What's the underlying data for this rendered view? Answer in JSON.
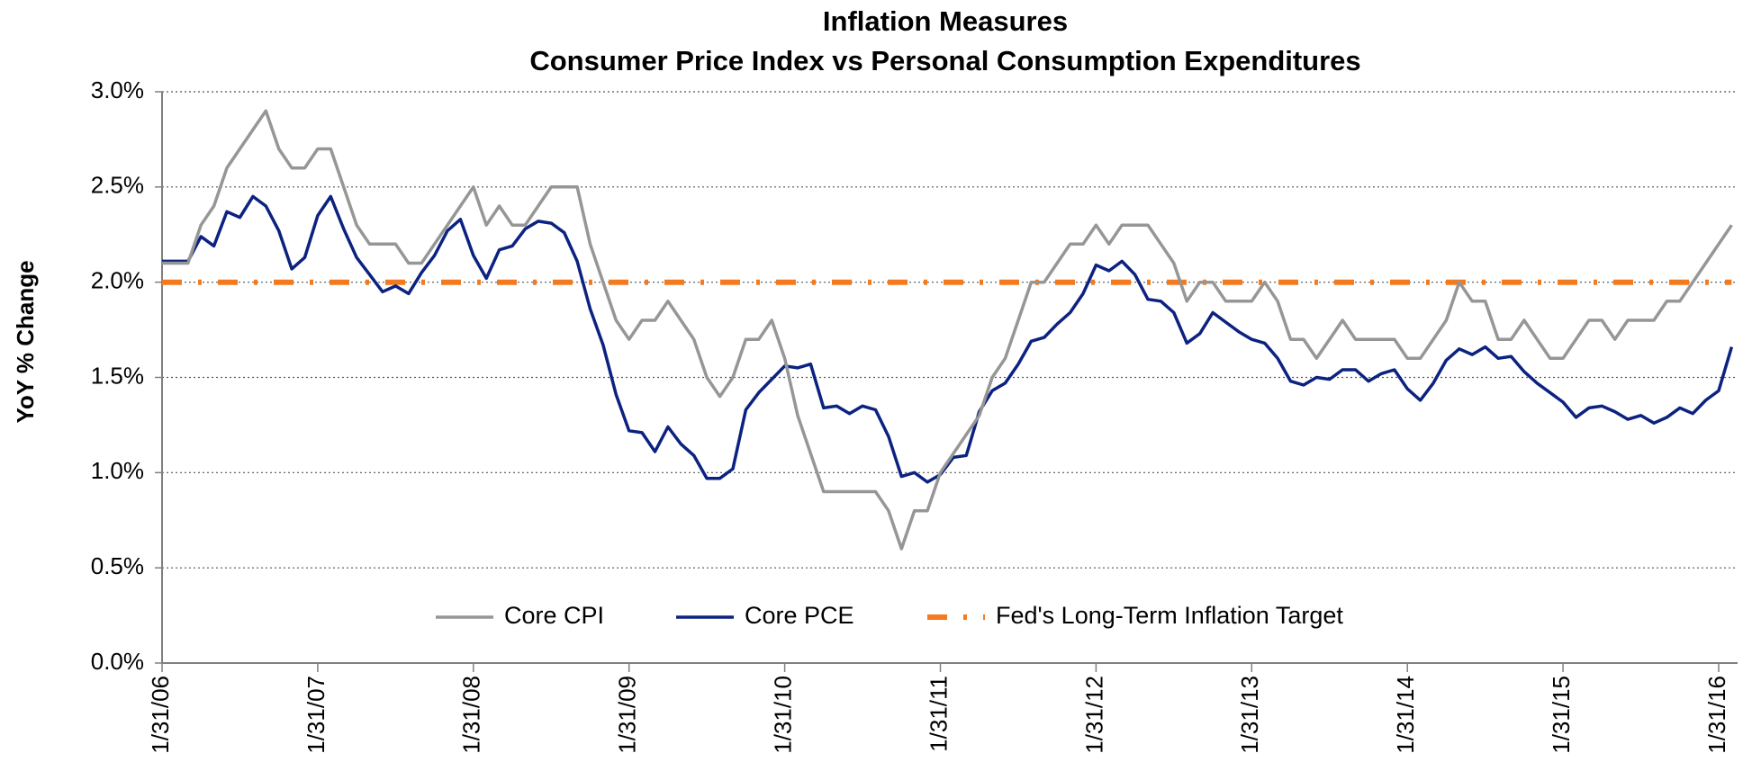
{
  "chart_data": {
    "type": "line",
    "title": "Inflation Measures",
    "subtitle": "Consumer Price Index vs Personal Consumption Expenditures",
    "y_label": "YoY % Change",
    "categories": [
      "1/31/06",
      null,
      null,
      null,
      null,
      null,
      null,
      null,
      null,
      null,
      null,
      null,
      "1/31/07",
      null,
      null,
      null,
      null,
      null,
      null,
      null,
      null,
      null,
      null,
      null,
      "1/31/08",
      null,
      null,
      null,
      null,
      null,
      null,
      null,
      null,
      null,
      null,
      null,
      "1/31/09",
      null,
      null,
      null,
      null,
      null,
      null,
      null,
      null,
      null,
      null,
      null,
      "1/31/10",
      null,
      null,
      null,
      null,
      null,
      null,
      null,
      null,
      null,
      null,
      null,
      "1/31/11",
      null,
      null,
      null,
      null,
      null,
      null,
      null,
      null,
      null,
      null,
      null,
      "1/31/12",
      null,
      null,
      null,
      null,
      null,
      null,
      null,
      null,
      null,
      null,
      null,
      "1/31/13",
      null,
      null,
      null,
      null,
      null,
      null,
      null,
      null,
      null,
      null,
      null,
      "1/31/14",
      null,
      null,
      null,
      null,
      null,
      null,
      null,
      null,
      null,
      null,
      null,
      "1/31/15",
      null,
      null,
      null,
      null,
      null,
      null,
      null,
      null,
      null,
      null,
      null,
      "1/31/16",
      null
    ],
    "series": [
      {
        "name": "Core CPI",
        "color": "#969696",
        "linestyle": "solid",
        "values": [
          2.1,
          2.1,
          2.1,
          2.3,
          2.4,
          2.6,
          2.7,
          2.8,
          2.9,
          2.7,
          2.6,
          2.6,
          2.7,
          2.7,
          2.5,
          2.3,
          2.2,
          2.2,
          2.2,
          2.1,
          2.1,
          2.2,
          2.3,
          2.4,
          2.5,
          2.3,
          2.4,
          2.3,
          2.3,
          2.4,
          2.5,
          2.5,
          2.5,
          2.2,
          2.0,
          1.8,
          1.7,
          1.8,
          1.8,
          1.9,
          1.8,
          1.7,
          1.5,
          1.4,
          1.5,
          1.7,
          1.7,
          1.8,
          1.6,
          1.3,
          1.1,
          0.9,
          0.9,
          0.9,
          0.9,
          0.9,
          0.8,
          0.6,
          0.8,
          0.8,
          1.0,
          1.1,
          1.2,
          1.3,
          1.5,
          1.6,
          1.8,
          2.0,
          2.0,
          2.1,
          2.2,
          2.2,
          2.3,
          2.2,
          2.3,
          2.3,
          2.3,
          2.2,
          2.1,
          1.9,
          2.0,
          2.0,
          1.9,
          1.9,
          1.9,
          2.0,
          1.9,
          1.7,
          1.7,
          1.6,
          1.7,
          1.8,
          1.7,
          1.7,
          1.7,
          1.7,
          1.6,
          1.6,
          1.7,
          1.8,
          2.0,
          1.9,
          1.9,
          1.7,
          1.7,
          1.8,
          1.7,
          1.6,
          1.6,
          1.7,
          1.8,
          1.8,
          1.7,
          1.8,
          1.8,
          1.8,
          1.9,
          1.9,
          2.0,
          2.1,
          2.2,
          2.3
        ]
      },
      {
        "name": "Core PCE",
        "color": "#0c2280",
        "linestyle": "solid",
        "values": [
          2.11,
          2.11,
          2.11,
          2.24,
          2.19,
          2.37,
          2.34,
          2.45,
          2.4,
          2.27,
          2.07,
          2.13,
          2.35,
          2.45,
          2.28,
          2.13,
          2.04,
          1.95,
          1.98,
          1.94,
          2.05,
          2.14,
          2.27,
          2.33,
          2.14,
          2.02,
          2.17,
          2.19,
          2.28,
          2.32,
          2.31,
          2.26,
          2.11,
          1.86,
          1.67,
          1.41,
          1.22,
          1.21,
          1.11,
          1.24,
          1.15,
          1.09,
          0.97,
          0.97,
          1.02,
          1.33,
          1.42,
          1.49,
          1.56,
          1.55,
          1.57,
          1.34,
          1.35,
          1.31,
          1.35,
          1.33,
          1.19,
          0.98,
          1.0,
          0.95,
          0.99,
          1.08,
          1.09,
          1.32,
          1.43,
          1.47,
          1.57,
          1.69,
          1.71,
          1.78,
          1.84,
          1.94,
          2.09,
          2.06,
          2.11,
          2.04,
          1.91,
          1.9,
          1.84,
          1.68,
          1.73,
          1.84,
          1.79,
          1.74,
          1.7,
          1.68,
          1.6,
          1.48,
          1.46,
          1.5,
          1.49,
          1.54,
          1.54,
          1.48,
          1.52,
          1.54,
          1.44,
          1.38,
          1.47,
          1.59,
          1.65,
          1.62,
          1.66,
          1.6,
          1.61,
          1.53,
          1.47,
          1.42,
          1.37,
          1.29,
          1.34,
          1.35,
          1.32,
          1.28,
          1.3,
          1.26,
          1.29,
          1.34,
          1.31,
          1.38,
          1.43,
          1.66
        ]
      },
      {
        "name": "Fed's Long-Term Inflation Target",
        "color": "#f47a1f",
        "linestyle": "dashdot",
        "values": [
          2,
          2,
          2,
          2,
          2,
          2,
          2,
          2,
          2,
          2,
          2,
          2,
          2,
          2,
          2,
          2,
          2,
          2,
          2,
          2,
          2,
          2,
          2,
          2,
          2,
          2,
          2,
          2,
          2,
          2,
          2,
          2,
          2,
          2,
          2,
          2,
          2,
          2,
          2,
          2,
          2,
          2,
          2,
          2,
          2,
          2,
          2,
          2,
          2,
          2,
          2,
          2,
          2,
          2,
          2,
          2,
          2,
          2,
          2,
          2,
          2,
          2,
          2,
          2,
          2,
          2,
          2,
          2,
          2,
          2,
          2,
          2,
          2,
          2,
          2,
          2,
          2,
          2,
          2,
          2,
          2,
          2,
          2,
          2,
          2,
          2,
          2,
          2,
          2,
          2,
          2,
          2,
          2,
          2,
          2,
          2,
          2,
          2,
          2,
          2,
          2,
          2,
          2,
          2,
          2,
          2,
          2,
          2,
          2,
          2,
          2,
          2,
          2,
          2,
          2,
          2,
          2,
          2,
          2,
          2,
          2,
          2
        ]
      }
    ],
    "ylim": [
      0,
      3
    ],
    "yticks": [
      {
        "value": 0,
        "label": "0.0%"
      },
      {
        "value": 0.5,
        "label": "0.5%"
      },
      {
        "value": 1,
        "label": "1.0%"
      },
      {
        "value": 1.5,
        "label": "1.5%"
      },
      {
        "value": 2,
        "label": "2.0%"
      },
      {
        "value": 2.5,
        "label": "2.5%"
      },
      {
        "value": 3,
        "label": "3.0%"
      }
    ],
    "grid": true,
    "legend": "bottom"
  }
}
